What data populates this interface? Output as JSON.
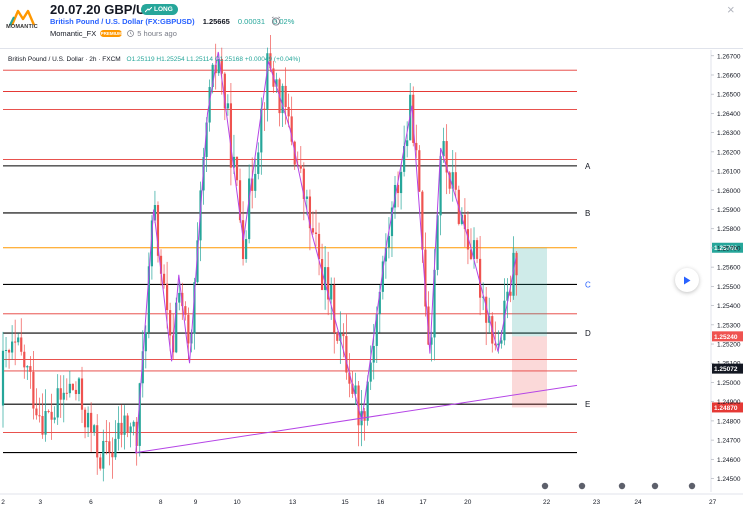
{
  "header": {
    "logo_text": "MOMANTIC",
    "idea_title": "20.07.20 GBP/USD",
    "badge": "LONG",
    "symbol": "British Pound / U.S. Dollar (FX:GBPUSD)",
    "price": "1.25665",
    "change": "0.00031",
    "change_pct": "0.02%",
    "author": "Momantic_FX",
    "premium_label": "PREMIUM",
    "time_ago": "5 hours ago",
    "close_label": "×"
  },
  "legend": {
    "title": "British Pound / U.S. Dollar · 2h · FXCM",
    "ohlc": "O1.25119  H1.25254  L1.25114  C1.25168  +0.00049 (+0.04%)"
  },
  "colors": {
    "up": "#26a69a",
    "down": "#ef5350",
    "orange": "#ff9800",
    "purple": "#b545e6",
    "level_black": "#000000",
    "level_red": "#e53935",
    "accent_blue": "#2962ff"
  },
  "chart_data": {
    "type": "candlestick",
    "y_ticks": [
      "1.26700",
      "1.26600",
      "1.26500",
      "1.26400",
      "1.26300",
      "1.26200",
      "1.26100",
      "1.26000",
      "1.25900",
      "1.25800",
      "1.25700",
      "1.25600",
      "1.25500",
      "1.25400",
      "1.25300",
      "1.25200",
      "1.25100",
      "1.25000",
      "1.24900",
      "1.24800",
      "1.24700",
      "1.24600",
      "1.24500"
    ],
    "ylim": [
      1.2443,
      1.2673
    ],
    "x_ticks": [
      "2",
      "3",
      "6",
      "8",
      "9",
      "10",
      "13",
      "15",
      "16",
      "17",
      "20",
      "22",
      "23",
      "24",
      "27"
    ],
    "levels_black": [
      1.26127,
      1.25882,
      1.2551,
      1.25257,
      1.24887,
      1.24635
    ],
    "levels_red": [
      1.26625,
      1.26514,
      1.2642,
      1.2616,
      1.25357,
      1.2512,
      1.2506,
      1.2474
    ],
    "level_labels": [
      {
        "text": "A",
        "level": 1.26127,
        "color": "#131722"
      },
      {
        "text": "B",
        "level": 1.25882,
        "color": "#131722"
      },
      {
        "text": "C",
        "level": 1.2551,
        "color": "#2962ff"
      },
      {
        "text": "D",
        "level": 1.25257,
        "color": "#131722"
      },
      {
        "text": "E",
        "level": 1.24887,
        "color": "#131722"
      }
    ],
    "price_tags": [
      {
        "text": "1.25701",
        "level": 1.25701,
        "color": "#26a69a"
      },
      {
        "text": "1.25240",
        "level": 1.2524,
        "color": "#ef5350"
      },
      {
        "text": "1.25072",
        "level": 1.25072,
        "color": "#131722"
      },
      {
        "text": "1.24870",
        "level": 1.2487,
        "color": "#e53935"
      }
    ],
    "orange_level": 1.25701,
    "position": {
      "entry": 1.2524,
      "target": 1.25701,
      "stop": 1.2487
    },
    "wave_points": [
      [
        0.37,
        1.2463
      ],
      [
        0.42,
        1.259
      ],
      [
        0.47,
        1.2511
      ],
      [
        0.49,
        1.2556
      ],
      [
        0.52,
        1.251
      ],
      [
        0.57,
        1.264
      ],
      [
        0.6,
        1.2672
      ],
      [
        0.67,
        1.2574
      ],
      [
        0.74,
        1.2667
      ],
      [
        0.8,
        1.2632
      ],
      [
        0.86,
        1.2578
      ],
      [
        0.96,
        1.2509
      ],
      [
        1.0,
        1.248
      ],
      [
        1.07,
        1.2573
      ],
      [
        1.14,
        1.2644
      ],
      [
        1.19,
        1.2515
      ],
      [
        1.22,
        1.2622
      ],
      [
        1.3,
        1.2573
      ],
      [
        1.38,
        1.2516
      ],
      [
        1.43,
        1.2565
      ]
    ],
    "trend_line": [
      [
        0.37,
        1.24635
      ],
      [
        1.6,
        1.24985
      ]
    ],
    "candles_seed": 42
  }
}
